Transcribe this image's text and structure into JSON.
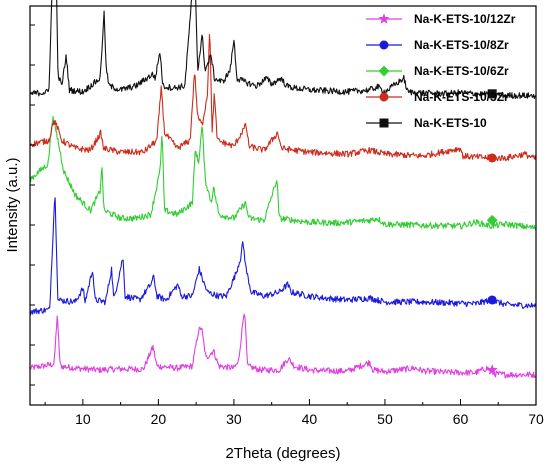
{
  "chart_data": {
    "type": "line",
    "xlabel": "2Theta (degrees)",
    "ylabel": "Intensity (a.u.)",
    "xlim": [
      3,
      70
    ],
    "x_ticks": [
      10,
      20,
      30,
      40,
      50,
      60,
      70
    ],
    "y_ticks_labeled": false,
    "y_range_au": [
      0,
      100
    ],
    "legend_position": "top-right",
    "series": [
      {
        "name": "Na-K-ETS-10/12Zr",
        "color": "#e040e0",
        "marker": "star",
        "baseline": 8,
        "points": [
          [
            3,
            9.5
          ],
          [
            6.2,
            10.5
          ],
          [
            6.6,
            23
          ],
          [
            7,
            10
          ],
          [
            9,
            9.5
          ],
          [
            12,
            9
          ],
          [
            15,
            9.3
          ],
          [
            18,
            9.2
          ],
          [
            19.3,
            15
          ],
          [
            19.8,
            10
          ],
          [
            22.5,
            9.5
          ],
          [
            24.5,
            10
          ],
          [
            25.3,
            19
          ],
          [
            25.7,
            20
          ],
          [
            26.3,
            12
          ],
          [
            27.3,
            14
          ],
          [
            28,
            10
          ],
          [
            30,
            9.5
          ],
          [
            30.6,
            11
          ],
          [
            31.4,
            25
          ],
          [
            31.8,
            10
          ],
          [
            33.5,
            9
          ],
          [
            36,
            9
          ],
          [
            37.2,
            12
          ],
          [
            38,
            10
          ],
          [
            40,
            9
          ],
          [
            42,
            8.8
          ],
          [
            45,
            8.7
          ],
          [
            48,
            11
          ],
          [
            48.4,
            9
          ],
          [
            50,
            8.6
          ],
          [
            54,
            9.5
          ],
          [
            55,
            8.8
          ],
          [
            58,
            8.4
          ],
          [
            62,
            8.3
          ],
          [
            63.5,
            9.5
          ],
          [
            64.5,
            8
          ],
          [
            66,
            7.8
          ],
          [
            70,
            7.8
          ]
        ],
        "marker_xy": [
          64.2,
          9
        ]
      },
      {
        "name": "Na-K-ETS-10/8Zr",
        "color": "#1a1adc",
        "marker": "circle",
        "baseline": 25,
        "points": [
          [
            3,
            24
          ],
          [
            5.6,
            24.5
          ],
          [
            6.3,
            55
          ],
          [
            6.7,
            27
          ],
          [
            9,
            26.5
          ],
          [
            10,
            30
          ],
          [
            10.3,
            26.5
          ],
          [
            11.3,
            35
          ],
          [
            11.6,
            27
          ],
          [
            13,
            26.5
          ],
          [
            13.8,
            35
          ],
          [
            14.1,
            27
          ],
          [
            15.3,
            38
          ],
          [
            15.6,
            28
          ],
          [
            17.5,
            27
          ],
          [
            19,
            31
          ],
          [
            19.4,
            33
          ],
          [
            19.8,
            28
          ],
          [
            21,
            27
          ],
          [
            22.6,
            31
          ],
          [
            23,
            28
          ],
          [
            24.5,
            28
          ],
          [
            25.4,
            35
          ],
          [
            25.9,
            32
          ],
          [
            26.5,
            29
          ],
          [
            28,
            28
          ],
          [
            29,
            28
          ],
          [
            30.3,
            34
          ],
          [
            30.9,
            38
          ],
          [
            31.2,
            42
          ],
          [
            31.6,
            35
          ],
          [
            32.3,
            29
          ],
          [
            34,
            28
          ],
          [
            36,
            29
          ],
          [
            37.1,
            31
          ],
          [
            37.6,
            29
          ],
          [
            40,
            28
          ],
          [
            42,
            27.5
          ],
          [
            45,
            27
          ],
          [
            48,
            27.5
          ],
          [
            50,
            26.5
          ],
          [
            55,
            26.5
          ],
          [
            58,
            26.3
          ],
          [
            62,
            26
          ],
          [
            64,
            27
          ],
          [
            66,
            25.8
          ],
          [
            70,
            25.5
          ]
        ],
        "marker_xy": [
          64.2,
          27
        ]
      },
      {
        "name": "Na-K-ETS-10/6Zr",
        "color": "#32cd32",
        "marker": "diamond",
        "baseline": 46,
        "points": [
          [
            3,
            58
          ],
          [
            5.4,
            62
          ],
          [
            6,
            74
          ],
          [
            6.5,
            70
          ],
          [
            7.5,
            60
          ],
          [
            9,
            54
          ],
          [
            11,
            50
          ],
          [
            12.3,
            55
          ],
          [
            12.5,
            62
          ],
          [
            12.8,
            50
          ],
          [
            15,
            48
          ],
          [
            17,
            48
          ],
          [
            19,
            49
          ],
          [
            20.2,
            60
          ],
          [
            20.5,
            70
          ],
          [
            20.8,
            50
          ],
          [
            22.5,
            49
          ],
          [
            24.5,
            52
          ],
          [
            24.9,
            66
          ],
          [
            25.3,
            62
          ],
          [
            25.8,
            72
          ],
          [
            26.2,
            58
          ],
          [
            27,
            52
          ],
          [
            27.3,
            56
          ],
          [
            28,
            49
          ],
          [
            30,
            48
          ],
          [
            31.5,
            52
          ],
          [
            32,
            48
          ],
          [
            34,
            47.5
          ],
          [
            35.7,
            58
          ],
          [
            36,
            48
          ],
          [
            38,
            47.5
          ],
          [
            40,
            47
          ],
          [
            44,
            46.8
          ],
          [
            48,
            47.5
          ],
          [
            49,
            48
          ],
          [
            50,
            46.5
          ],
          [
            55,
            46.2
          ],
          [
            60,
            46
          ],
          [
            62,
            47
          ],
          [
            64,
            46
          ],
          [
            66,
            46.5
          ],
          [
            70,
            45.5
          ]
        ],
        "marker_xy": [
          64.2,
          47.5
        ]
      },
      {
        "name": "Na-K-ETS-10/3Zr",
        "color": "#cd2c1c",
        "marker": "circle",
        "baseline": 63,
        "points": [
          [
            3,
            67
          ],
          [
            5.5,
            68
          ],
          [
            6.1,
            73
          ],
          [
            6.5,
            72
          ],
          [
            7.2,
            68
          ],
          [
            9,
            66
          ],
          [
            11,
            65.5
          ],
          [
            12.4,
            70
          ],
          [
            12.7,
            66
          ],
          [
            15,
            65
          ],
          [
            18,
            65
          ],
          [
            19.8,
            68
          ],
          [
            20.4,
            82
          ],
          [
            20.8,
            70
          ],
          [
            22.5,
            66
          ],
          [
            24.2,
            68
          ],
          [
            24.8,
            86
          ],
          [
            25.2,
            74
          ],
          [
            25.8,
            72
          ],
          [
            26.5,
            80
          ],
          [
            26.8,
            98
          ],
          [
            27.1,
            70
          ],
          [
            27.4,
            80
          ],
          [
            27.8,
            68
          ],
          [
            30,
            66.5
          ],
          [
            31.6,
            72
          ],
          [
            32,
            66.5
          ],
          [
            34,
            65.5
          ],
          [
            35.8,
            70
          ],
          [
            36.3,
            66
          ],
          [
            38,
            65.5
          ],
          [
            40,
            65
          ],
          [
            45,
            64.5
          ],
          [
            48,
            65.5
          ],
          [
            50,
            64.5
          ],
          [
            55,
            64
          ],
          [
            60,
            66
          ],
          [
            60.3,
            64
          ],
          [
            64,
            63.5
          ],
          [
            66,
            63.5
          ],
          [
            68.5,
            64.5
          ],
          [
            70,
            63.2
          ]
        ],
        "marker_xy": [
          64.2,
          63.5
        ]
      },
      {
        "name": "Na-K-ETS-10",
        "color": "#111111",
        "marker": "square",
        "baseline": 78,
        "points": [
          [
            3,
            80
          ],
          [
            5.5,
            80.5
          ],
          [
            6.3,
            130
          ],
          [
            6.7,
            85
          ],
          [
            7.2,
            82
          ],
          [
            7.8,
            90
          ],
          [
            8.2,
            81
          ],
          [
            10,
            80.5
          ],
          [
            12.3,
            84
          ],
          [
            12.8,
            101
          ],
          [
            13.1,
            86
          ],
          [
            13.5,
            82
          ],
          [
            15,
            81
          ],
          [
            17,
            82
          ],
          [
            19.2,
            85
          ],
          [
            19.6,
            84
          ],
          [
            20.2,
            91
          ],
          [
            20.6,
            82
          ],
          [
            22,
            81.5
          ],
          [
            23.5,
            82
          ],
          [
            24.8,
            114
          ],
          [
            25.2,
            86
          ],
          [
            25.8,
            95
          ],
          [
            26.2,
            86
          ],
          [
            27,
            90
          ],
          [
            27.4,
            84
          ],
          [
            28.5,
            83
          ],
          [
            29.5,
            86
          ],
          [
            30,
            94
          ],
          [
            30.4,
            84
          ],
          [
            31.5,
            83
          ],
          [
            33,
            82
          ],
          [
            34.3,
            84
          ],
          [
            35,
            82.5
          ],
          [
            36.2,
            84
          ],
          [
            37,
            82
          ],
          [
            38,
            81.5
          ],
          [
            40,
            81
          ],
          [
            42,
            80.8
          ],
          [
            45,
            80.5
          ],
          [
            48,
            81
          ],
          [
            49,
            81.8
          ],
          [
            50,
            80.5
          ],
          [
            52.5,
            84
          ],
          [
            53,
            80.5
          ],
          [
            55,
            80.2
          ],
          [
            58,
            80
          ],
          [
            60,
            80.3
          ],
          [
            62,
            80
          ],
          [
            64,
            79.8
          ],
          [
            66,
            79.6
          ],
          [
            70,
            79.5
          ]
        ],
        "marker_xy": [
          64.2,
          80
        ]
      }
    ]
  }
}
